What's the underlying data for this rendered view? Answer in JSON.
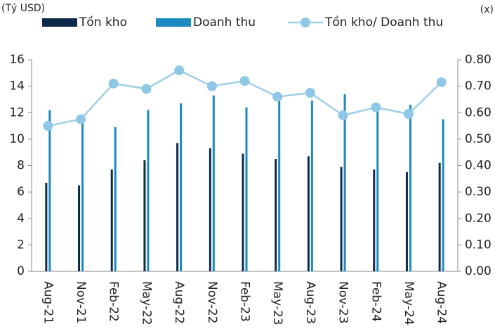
{
  "chart_data": {
    "type": "bar_line",
    "y_label": "(Tỷ USD)",
    "y2_label": "(x)",
    "categories": [
      "Aug-21",
      "Nov-21",
      "Feb-22",
      "May-22",
      "Aug-22",
      "Nov-22",
      "Feb-23",
      "May-23",
      "Aug-23",
      "Nov-23",
      "Feb-24",
      "May-24",
      "Aug-24"
    ],
    "series": [
      {
        "name": "Tồn kho",
        "type": "bar",
        "color": "#0d2a4a",
        "values": [
          6.7,
          6.5,
          7.7,
          8.4,
          9.7,
          9.3,
          8.9,
          8.5,
          8.7,
          7.9,
          7.7,
          7.5,
          8.2
        ]
      },
      {
        "name": "Doanh thu",
        "type": "bar",
        "color": "#1a8ac0",
        "values": [
          12.2,
          11.3,
          10.9,
          12.2,
          12.7,
          13.3,
          12.4,
          13.0,
          12.9,
          13.4,
          12.3,
          12.6,
          11.5
        ]
      },
      {
        "name": "Tồn kho/ Doanh thu",
        "type": "line",
        "axis": "y2",
        "color": "#9fcfe8",
        "values": [
          0.55,
          0.575,
          0.71,
          0.69,
          0.76,
          0.7,
          0.72,
          0.66,
          0.675,
          0.59,
          0.62,
          0.595,
          0.715
        ]
      }
    ],
    "ylim": [
      0,
      16
    ],
    "yticks": [
      0,
      2,
      4,
      6,
      8,
      10,
      12,
      14,
      16
    ],
    "y2lim": [
      0,
      0.8
    ],
    "y2ticks": [
      {
        "value": 0,
        "label": "0.00"
      },
      {
        "value": 0.1,
        "label": "0.10"
      },
      {
        "value": 0.2,
        "label": "0.20"
      },
      {
        "value": 0.3,
        "label": "0.30"
      },
      {
        "value": 0.4,
        "label": "0.40"
      },
      {
        "value": 0.5,
        "label": "0.50"
      },
      {
        "value": 0.6,
        "label": "0.60"
      },
      {
        "value": 0.7,
        "label": "0.70"
      },
      {
        "value": 0.8,
        "label": "0.80"
      }
    ],
    "grid": false
  }
}
